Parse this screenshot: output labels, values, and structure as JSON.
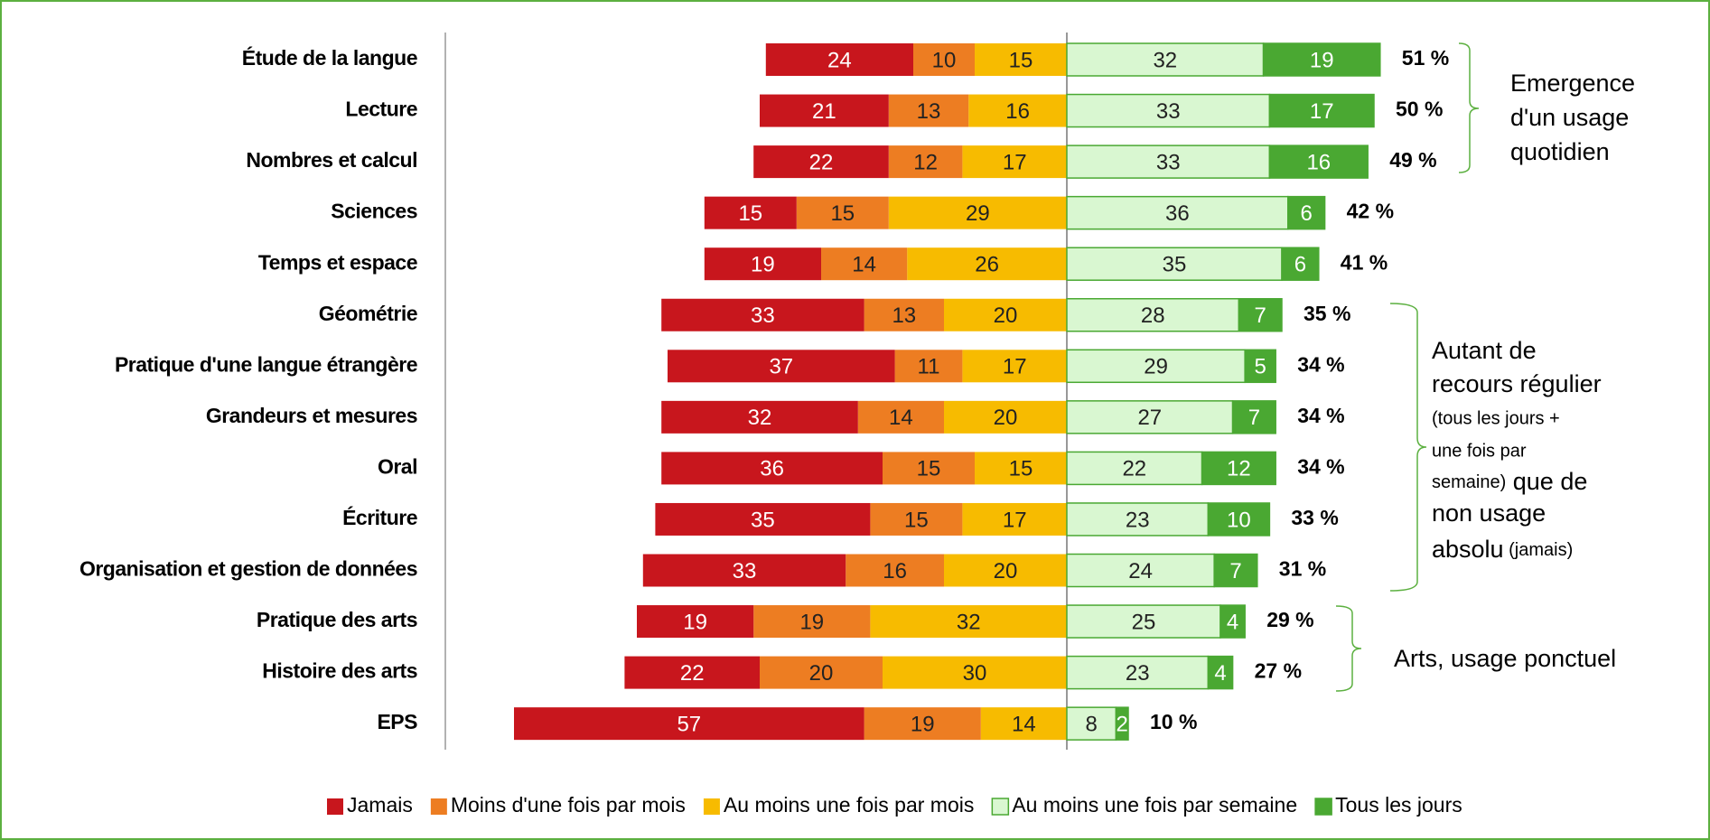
{
  "chart_data": {
    "type": "diverging_bar",
    "categories": [
      "Étude de la langue",
      "Lecture",
      "Nombres et calcul",
      "Sciences",
      "Temps et espace",
      "Géométrie",
      "Pratique d'une langue étrangère",
      "Grandeurs et mesures",
      "Oral",
      "Écriture",
      "Organisation et gestion de données",
      "Pratique des arts",
      "Histoire des arts",
      "EPS"
    ],
    "series": [
      {
        "name": "Jamais",
        "color": "#c8161d",
        "side": "left",
        "values": [
          24,
          21,
          22,
          15,
          19,
          33,
          37,
          32,
          36,
          35,
          33,
          19,
          22,
          57
        ]
      },
      {
        "name": "Moins d'une fois par mois",
        "color": "#ed7d22",
        "side": "left",
        "values": [
          10,
          13,
          12,
          15,
          14,
          13,
          11,
          14,
          15,
          15,
          16,
          19,
          20,
          19
        ]
      },
      {
        "name": "Au moins une fois par mois",
        "color": "#f7bb00",
        "side": "left",
        "values": [
          15,
          16,
          17,
          29,
          26,
          20,
          17,
          20,
          15,
          17,
          20,
          32,
          30,
          14
        ]
      },
      {
        "name": "Au moins une fois par semaine",
        "color": "#d9f7d1",
        "side": "right",
        "values": [
          32,
          33,
          33,
          36,
          35,
          28,
          29,
          27,
          22,
          23,
          24,
          25,
          23,
          8
        ]
      },
      {
        "name": "Tous les jours",
        "color": "#4aa832",
        "side": "right",
        "values": [
          19,
          17,
          16,
          6,
          6,
          7,
          5,
          7,
          12,
          10,
          7,
          4,
          4,
          2
        ]
      }
    ],
    "totals": {
      "values": [
        51,
        50,
        49,
        42,
        41,
        35,
        34,
        34,
        34,
        33,
        31,
        29,
        27,
        10
      ],
      "value_labels": [
        "51 %",
        "50 %",
        "49 %",
        "42 %",
        "41 %",
        "35 %",
        "34 %",
        "34 %",
        "34 %",
        "33 %",
        "31 %",
        "29 %",
        "27 %",
        "10 %"
      ]
    },
    "annotations": [
      {
        "lines": [
          "Emergence",
          "d'un usage",
          "quotidien"
        ]
      },
      {
        "lines": [
          "Autant de",
          "recours régulier",
          "(tous les jours +",
          "une fois par",
          "semaine)",
          " que de",
          "non usage",
          "absolu",
          " (jamais)"
        ]
      },
      {
        "lines": [
          "Arts, usage ponctuel"
        ]
      }
    ]
  }
}
